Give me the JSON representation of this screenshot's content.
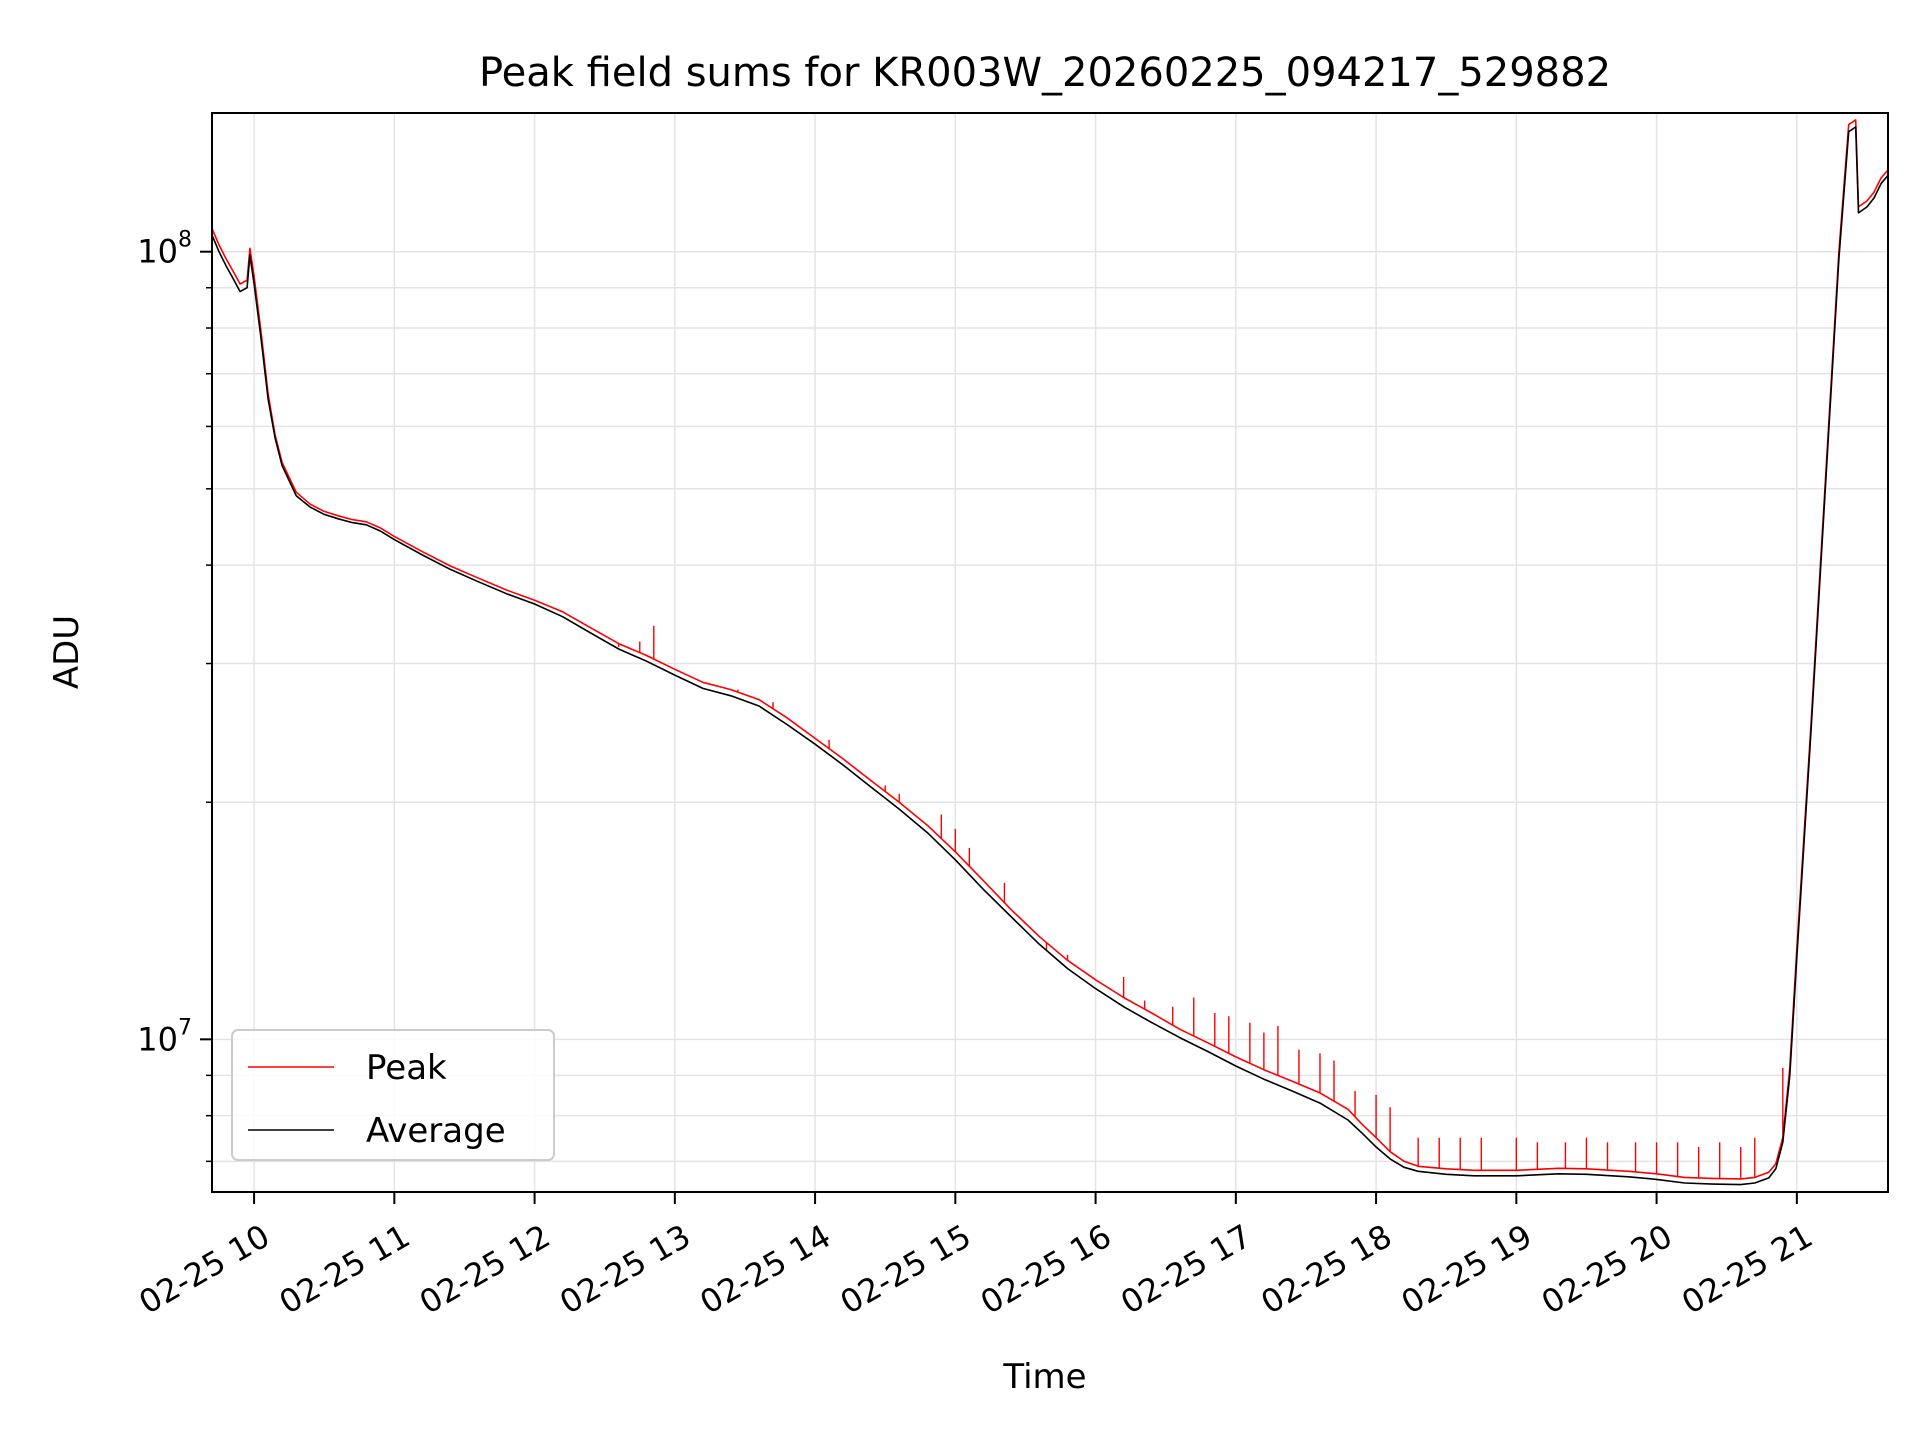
{
  "chart_data": {
    "type": "line",
    "title": "Peak field sums for KR003W_20260225_094217_529882",
    "xlabel": "Time",
    "ylabel": "ADU",
    "yscale": "log",
    "xlim": [
      9.7,
      21.65
    ],
    "ylim": [
      6400000,
      150000000
    ],
    "grid": true,
    "legend_position": "lower-left",
    "x_ticks": [
      {
        "value": 10,
        "label": "02-25 10"
      },
      {
        "value": 11,
        "label": "02-25 11"
      },
      {
        "value": 12,
        "label": "02-25 12"
      },
      {
        "value": 13,
        "label": "02-25 13"
      },
      {
        "value": 14,
        "label": "02-25 14"
      },
      {
        "value": 15,
        "label": "02-25 15"
      },
      {
        "value": 16,
        "label": "02-25 16"
      },
      {
        "value": 17,
        "label": "02-25 17"
      },
      {
        "value": 18,
        "label": "02-25 18"
      },
      {
        "value": 19,
        "label": "02-25 19"
      },
      {
        "value": 20,
        "label": "02-25 20"
      },
      {
        "value": 21,
        "label": "02-25 21"
      }
    ],
    "y_ticks": [
      {
        "value": 10000000,
        "base": "10",
        "exp": "7"
      },
      {
        "value": 100000000,
        "base": "10",
        "exp": "8"
      }
    ],
    "series": [
      {
        "name": "Peak",
        "color": "#ff0000",
        "spikes": [
          [
            12.6,
            31500000
          ],
          [
            12.75,
            32000000
          ],
          [
            12.85,
            33500000
          ],
          [
            13.45,
            27800000
          ],
          [
            13.7,
            26800000
          ],
          [
            14.1,
            24000000
          ],
          [
            14.5,
            21000000
          ],
          [
            14.6,
            20500000
          ],
          [
            14.9,
            19300000
          ],
          [
            15.0,
            18500000
          ],
          [
            15.1,
            17500000
          ],
          [
            15.35,
            15800000
          ],
          [
            15.5,
            14000000
          ],
          [
            15.65,
            13000000
          ],
          [
            15.8,
            12800000
          ],
          [
            16.2,
            12000000
          ],
          [
            16.35,
            11200000
          ],
          [
            16.55,
            11000000
          ],
          [
            16.7,
            11300000
          ],
          [
            16.85,
            10800000
          ],
          [
            16.95,
            10700000
          ],
          [
            17.1,
            10500000
          ],
          [
            17.2,
            10200000
          ],
          [
            17.3,
            10400000
          ],
          [
            17.45,
            9700000
          ],
          [
            17.6,
            9600000
          ],
          [
            17.7,
            9400000
          ],
          [
            17.85,
            8600000
          ],
          [
            18.0,
            8500000
          ],
          [
            18.1,
            8200000
          ],
          [
            18.3,
            7500000
          ],
          [
            18.45,
            7500000
          ],
          [
            18.6,
            7500000
          ],
          [
            18.75,
            7500000
          ],
          [
            19.0,
            7500000
          ],
          [
            19.15,
            7400000
          ],
          [
            19.35,
            7400000
          ],
          [
            19.5,
            7500000
          ],
          [
            19.65,
            7400000
          ],
          [
            19.85,
            7400000
          ],
          [
            20.0,
            7400000
          ],
          [
            20.15,
            7400000
          ],
          [
            20.3,
            7300000
          ],
          [
            20.45,
            7400000
          ],
          [
            20.6,
            7300000
          ],
          [
            20.7,
            7500000
          ],
          [
            20.9,
            9200000
          ],
          [
            20.98,
            11000000
          ]
        ],
        "values": [
          [
            9.7,
            107000000
          ],
          [
            9.75,
            102000000
          ],
          [
            9.8,
            98000000
          ],
          [
            9.85,
            94500000
          ],
          [
            9.9,
            91000000
          ],
          [
            9.95,
            92000000
          ],
          [
            9.97,
            101000000
          ],
          [
            10.0,
            93000000
          ],
          [
            10.05,
            79000000
          ],
          [
            10.1,
            66000000
          ],
          [
            10.15,
            58500000
          ],
          [
            10.2,
            54000000
          ],
          [
            10.3,
            49500000
          ],
          [
            10.4,
            47800000
          ],
          [
            10.5,
            46800000
          ],
          [
            10.6,
            46200000
          ],
          [
            10.7,
            45700000
          ],
          [
            10.8,
            45400000
          ],
          [
            10.9,
            44600000
          ],
          [
            11.0,
            43500000
          ],
          [
            11.2,
            41600000
          ],
          [
            11.4,
            39900000
          ],
          [
            11.6,
            38500000
          ],
          [
            11.8,
            37200000
          ],
          [
            12.0,
            36100000
          ],
          [
            12.2,
            34900000
          ],
          [
            12.4,
            33300000
          ],
          [
            12.6,
            31800000
          ],
          [
            12.8,
            30700000
          ],
          [
            13.0,
            29500000
          ],
          [
            13.2,
            28400000
          ],
          [
            13.4,
            27800000
          ],
          [
            13.6,
            27000000
          ],
          [
            13.8,
            25600000
          ],
          [
            14.0,
            24100000
          ],
          [
            14.2,
            22700000
          ],
          [
            14.4,
            21300000
          ],
          [
            14.6,
            20000000
          ],
          [
            14.8,
            18700000
          ],
          [
            15.0,
            17300000
          ],
          [
            15.2,
            15900000
          ],
          [
            15.4,
            14600000
          ],
          [
            15.6,
            13500000
          ],
          [
            15.8,
            12600000
          ],
          [
            16.0,
            11900000
          ],
          [
            16.2,
            11300000
          ],
          [
            16.4,
            10800000
          ],
          [
            16.6,
            10300000
          ],
          [
            16.8,
            9900000
          ],
          [
            17.0,
            9500000
          ],
          [
            17.2,
            9150000
          ],
          [
            17.4,
            8850000
          ],
          [
            17.6,
            8550000
          ],
          [
            17.8,
            8150000
          ],
          [
            17.9,
            7800000
          ],
          [
            18.0,
            7500000
          ],
          [
            18.1,
            7200000
          ],
          [
            18.2,
            7000000
          ],
          [
            18.3,
            6900000
          ],
          [
            18.5,
            6850000
          ],
          [
            18.7,
            6820000
          ],
          [
            19.0,
            6820000
          ],
          [
            19.3,
            6860000
          ],
          [
            19.5,
            6850000
          ],
          [
            19.8,
            6800000
          ],
          [
            20.0,
            6750000
          ],
          [
            20.2,
            6680000
          ],
          [
            20.4,
            6660000
          ],
          [
            20.6,
            6650000
          ],
          [
            20.7,
            6680000
          ],
          [
            20.8,
            6780000
          ],
          [
            20.85,
            6950000
          ],
          [
            20.9,
            7500000
          ],
          [
            20.95,
            9200000
          ],
          [
            21.0,
            13000000
          ],
          [
            21.1,
            25000000
          ],
          [
            21.2,
            50000000
          ],
          [
            21.3,
            100000000
          ],
          [
            21.37,
            145000000
          ],
          [
            21.42,
            147000000
          ],
          [
            21.44,
            114000000
          ],
          [
            21.5,
            116000000
          ],
          [
            21.55,
            119000000
          ],
          [
            21.6,
            124000000
          ],
          [
            21.65,
            127000000
          ]
        ]
      },
      {
        "name": "Average",
        "color": "#000000",
        "values": [
          [
            9.7,
            105000000
          ],
          [
            9.75,
            100000000
          ],
          [
            9.8,
            96000000
          ],
          [
            9.85,
            92500000
          ],
          [
            9.9,
            89000000
          ],
          [
            9.95,
            90000000
          ],
          [
            9.97,
            99000000
          ],
          [
            10.0,
            91000000
          ],
          [
            10.05,
            77500000
          ],
          [
            10.1,
            65000000
          ],
          [
            10.15,
            58000000
          ],
          [
            10.2,
            53500000
          ],
          [
            10.3,
            49000000
          ],
          [
            10.4,
            47400000
          ],
          [
            10.5,
            46400000
          ],
          [
            10.6,
            45800000
          ],
          [
            10.7,
            45300000
          ],
          [
            10.8,
            45000000
          ],
          [
            10.9,
            44200000
          ],
          [
            11.0,
            43100000
          ],
          [
            11.2,
            41200000
          ],
          [
            11.4,
            39500000
          ],
          [
            11.6,
            38100000
          ],
          [
            11.8,
            36800000
          ],
          [
            12.0,
            35700000
          ],
          [
            12.2,
            34400000
          ],
          [
            12.4,
            32800000
          ],
          [
            12.6,
            31300000
          ],
          [
            12.8,
            30200000
          ],
          [
            13.0,
            29000000
          ],
          [
            13.2,
            27900000
          ],
          [
            13.4,
            27300000
          ],
          [
            13.6,
            26500000
          ],
          [
            13.8,
            25100000
          ],
          [
            14.0,
            23700000
          ],
          [
            14.2,
            22300000
          ],
          [
            14.4,
            20900000
          ],
          [
            14.6,
            19600000
          ],
          [
            14.8,
            18300000
          ],
          [
            15.0,
            16900000
          ],
          [
            15.2,
            15500000
          ],
          [
            15.4,
            14300000
          ],
          [
            15.6,
            13200000
          ],
          [
            15.8,
            12300000
          ],
          [
            16.0,
            11600000
          ],
          [
            16.2,
            11000000
          ],
          [
            16.4,
            10500000
          ],
          [
            16.6,
            10050000
          ],
          [
            16.8,
            9650000
          ],
          [
            17.0,
            9250000
          ],
          [
            17.2,
            8900000
          ],
          [
            17.4,
            8600000
          ],
          [
            17.6,
            8300000
          ],
          [
            17.8,
            7900000
          ],
          [
            17.9,
            7600000
          ],
          [
            18.0,
            7300000
          ],
          [
            18.1,
            7050000
          ],
          [
            18.2,
            6880000
          ],
          [
            18.3,
            6800000
          ],
          [
            18.5,
            6740000
          ],
          [
            18.7,
            6710000
          ],
          [
            19.0,
            6710000
          ],
          [
            19.3,
            6750000
          ],
          [
            19.5,
            6740000
          ],
          [
            19.8,
            6690000
          ],
          [
            20.0,
            6640000
          ],
          [
            20.2,
            6570000
          ],
          [
            20.4,
            6550000
          ],
          [
            20.6,
            6540000
          ],
          [
            20.7,
            6570000
          ],
          [
            20.8,
            6670000
          ],
          [
            20.85,
            6850000
          ],
          [
            20.9,
            7400000
          ],
          [
            20.95,
            9000000
          ],
          [
            21.0,
            12700000
          ],
          [
            21.1,
            24500000
          ],
          [
            21.2,
            49000000
          ],
          [
            21.3,
            98000000
          ],
          [
            21.37,
            142000000
          ],
          [
            21.42,
            144000000
          ],
          [
            21.44,
            112000000
          ],
          [
            21.5,
            114000000
          ],
          [
            21.55,
            117000000
          ],
          [
            21.6,
            122000000
          ],
          [
            21.65,
            125000000
          ]
        ]
      }
    ]
  }
}
